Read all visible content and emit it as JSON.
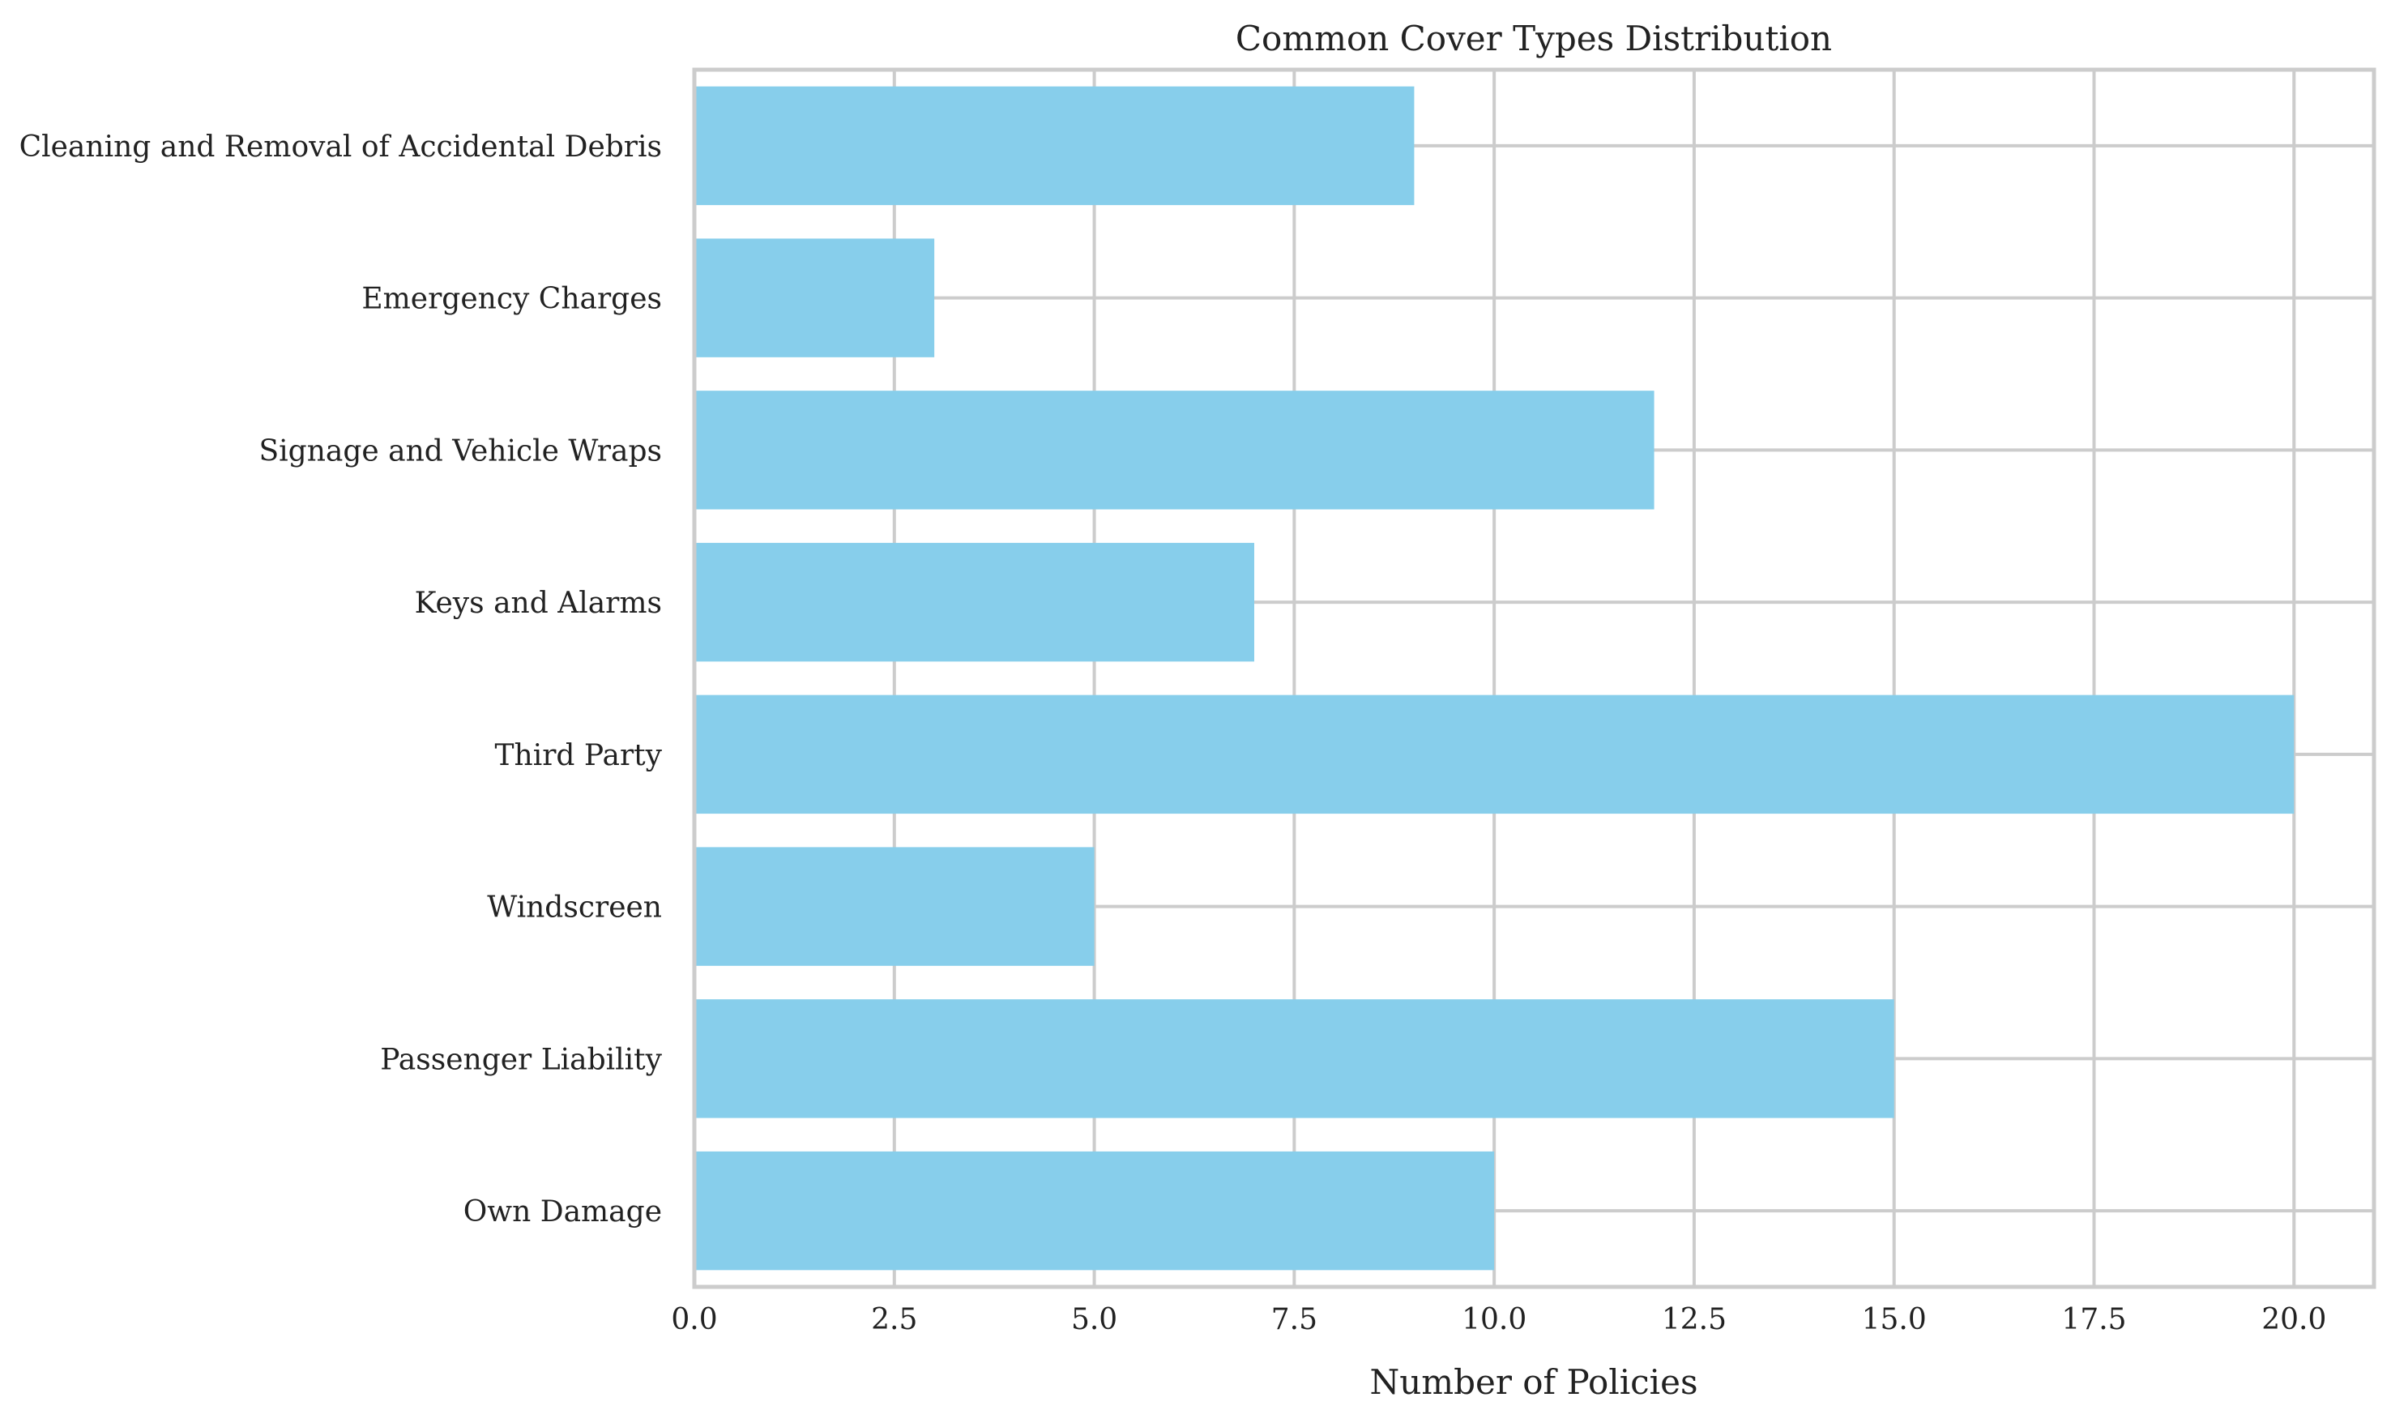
{
  "chart_data": {
    "type": "bar",
    "orientation": "horizontal",
    "title": "Common Cover Types Distribution",
    "xlabel": "Number of Policies",
    "ylabel": "",
    "categories": [
      "Own Damage",
      "Passenger Liability",
      "Windscreen",
      "Third Party",
      "Keys and Alarms",
      "Signage and Vehicle Wraps",
      "Emergency Charges",
      "Cleaning and Removal of Accidental Debris"
    ],
    "values": [
      10,
      15,
      5,
      20,
      7,
      12,
      3,
      9
    ],
    "xlim": [
      0,
      21
    ],
    "xticks": [
      "0.0",
      "2.5",
      "5.0",
      "7.5",
      "10.0",
      "12.5",
      "15.0",
      "17.5",
      "20.0"
    ],
    "grid": true,
    "bar_color": "#87CEEB"
  }
}
